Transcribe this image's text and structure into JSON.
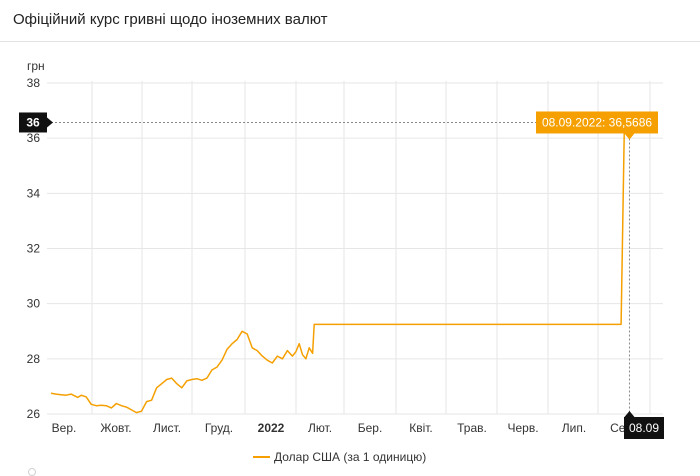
{
  "header": {
    "title": "Офіційний курс гривні щодо іноземних валют"
  },
  "chart_data": {
    "type": "line",
    "ylabel": "грн",
    "ylim": [
      26,
      38
    ],
    "y_ticks": [
      26,
      28,
      30,
      32,
      34,
      36,
      38
    ],
    "x_ticks": [
      "Вер.",
      "Жовт.",
      "Лист.",
      "Груд.",
      "2022",
      "Лют.",
      "Бер.",
      "Квіт.",
      "Трав.",
      "Черв.",
      "Лип.",
      "Серп."
    ],
    "grid": true,
    "legend": "bottom",
    "series": [
      {
        "name": "Долар США (за 1 одиницю)",
        "color": "#f5a000",
        "x": [
          0,
          3,
          6,
          9,
          12,
          14,
          16,
          18,
          21,
          24,
          27,
          30,
          33,
          36,
          39,
          42,
          45,
          48,
          51,
          54,
          57,
          60,
          63,
          66,
          69,
          72,
          75,
          78,
          81,
          84,
          87,
          90,
          93,
          96,
          99,
          102,
          105,
          108,
          111,
          114,
          117,
          120,
          123,
          126,
          129,
          132,
          135,
          138,
          141,
          144,
          146,
          148,
          150,
          152,
          154,
          156,
          157,
          158,
          160,
          162,
          164,
          166,
          168,
          170,
          171,
          174,
          176,
          178,
          340,
          342,
          345
        ],
        "values": [
          26.75,
          26.72,
          26.7,
          26.68,
          26.72,
          26.66,
          26.6,
          26.68,
          26.62,
          26.35,
          26.3,
          26.32,
          26.3,
          26.22,
          26.38,
          26.3,
          26.25,
          26.15,
          26.05,
          26.1,
          26.45,
          26.5,
          26.95,
          27.1,
          27.25,
          27.3,
          27.1,
          26.95,
          27.2,
          27.25,
          27.28,
          27.22,
          27.3,
          27.6,
          27.7,
          27.95,
          28.35,
          28.55,
          28.7,
          29.0,
          28.9,
          28.4,
          28.3,
          28.1,
          27.95,
          27.85,
          28.1,
          28.0,
          28.3,
          28.1,
          28.25,
          28.55,
          28.15,
          28.0,
          28.4,
          28.2,
          29.25,
          29.25,
          29.25,
          29.25,
          29.25,
          29.25,
          29.25,
          29.25,
          29.25,
          29.25,
          29.25,
          29.25,
          29.25,
          36.5686,
          36.5686
        ]
      }
    ],
    "crosshair": {
      "y_label": "36",
      "x_label": "08.09",
      "tooltip": "08.09.2022: 36,5686"
    }
  }
}
